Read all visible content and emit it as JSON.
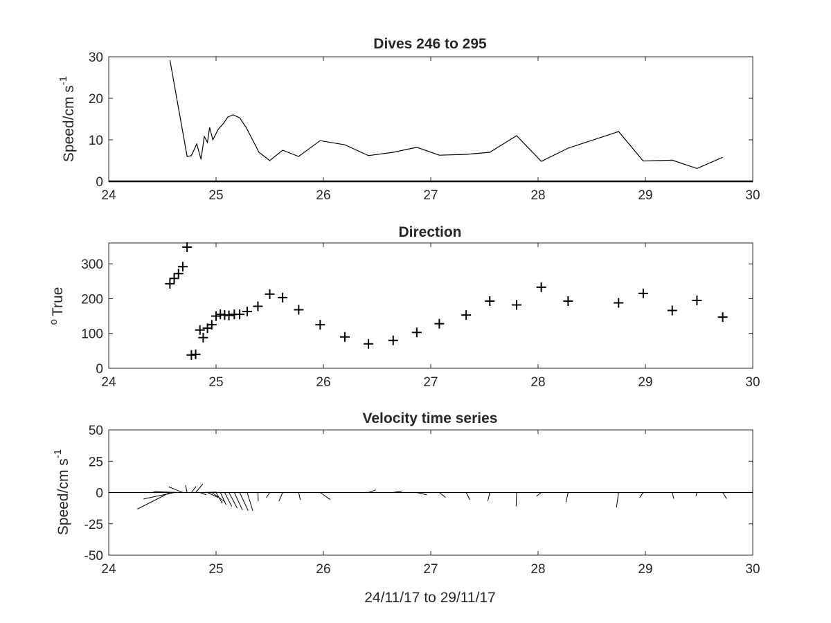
{
  "figure": {
    "xlabel": "24/11/17 to 29/11/17"
  },
  "chart_data": [
    {
      "type": "line",
      "title": "Dives 246 to 295",
      "ylabel": "Speed/cm s",
      "ylabel_exponent": "-1",
      "xlim": [
        24,
        30
      ],
      "ylim": [
        0,
        30
      ],
      "xticks": [
        24,
        25,
        26,
        27,
        28,
        29,
        30
      ],
      "yticks": [
        0,
        10,
        20,
        30
      ],
      "color": "#000000",
      "x": [
        24.57,
        24.73,
        24.77,
        24.82,
        24.86,
        24.89,
        24.92,
        24.94,
        24.97,
        25.02,
        25.07,
        25.11,
        25.16,
        25.22,
        25.28,
        25.4,
        25.5,
        25.62,
        25.77,
        25.97,
        26.2,
        26.42,
        26.65,
        26.87,
        27.08,
        27.33,
        27.55,
        27.8,
        28.03,
        28.28,
        28.75,
        28.98,
        29.25,
        29.48,
        29.72
      ],
      "y": [
        29.2,
        6.0,
        6.2,
        9.0,
        5.3,
        10.8,
        9.4,
        13.0,
        10.0,
        12.5,
        14.0,
        15.5,
        16.0,
        15.3,
        13.0,
        7.0,
        5.0,
        7.5,
        6.0,
        9.8,
        8.8,
        6.2,
        7.0,
        8.2,
        6.3,
        6.5,
        7.0,
        11.0,
        4.8,
        8.0,
        12.0,
        4.9,
        5.1,
        3.1,
        5.8
      ]
    },
    {
      "type": "scatter",
      "title": "Direction",
      "ylabel": "True",
      "ylabel_prefix": "o",
      "xlim": [
        24,
        30
      ],
      "ylim": [
        0,
        360
      ],
      "xticks": [
        24,
        25,
        26,
        27,
        28,
        29,
        30
      ],
      "yticks": [
        0,
        100,
        200,
        300
      ],
      "marker": "+",
      "color": "#000000",
      "x": [
        24.57,
        24.61,
        24.65,
        24.69,
        24.73,
        24.77,
        24.81,
        24.85,
        24.88,
        24.92,
        24.96,
        25.0,
        25.04,
        25.08,
        25.12,
        25.17,
        25.22,
        25.29,
        25.39,
        25.5,
        25.62,
        25.77,
        25.97,
        26.2,
        26.42,
        26.65,
        26.87,
        27.08,
        27.33,
        27.55,
        27.8,
        28.03,
        28.28,
        28.75,
        28.98,
        29.25,
        29.48,
        29.72
      ],
      "y": [
        243,
        258,
        272,
        292,
        348,
        38,
        40,
        110,
        88,
        115,
        125,
        150,
        155,
        153,
        152,
        155,
        155,
        163,
        178,
        213,
        203,
        168,
        125,
        90,
        70,
        80,
        103,
        128,
        153,
        193,
        182,
        233,
        193,
        188,
        215,
        166,
        195,
        147
      ]
    },
    {
      "type": "line",
      "title": "Velocity time series",
      "ylabel": "Speed/cm s",
      "ylabel_exponent": "-1",
      "xlim": [
        24,
        30
      ],
      "ylim": [
        -50,
        50
      ],
      "xticks": [
        24,
        25,
        26,
        27,
        28,
        29,
        30
      ],
      "yticks": [
        -50,
        -25,
        0,
        25,
        50
      ],
      "zero_line": true,
      "vector_style": "stick",
      "color": "#000000",
      "base_x": [
        24.57,
        24.61,
        24.65,
        24.69,
        24.73,
        24.77,
        24.81,
        24.85,
        24.88,
        24.92,
        24.96,
        25.0,
        25.04,
        25.08,
        25.12,
        25.17,
        25.22,
        25.29,
        25.39,
        25.5,
        25.62,
        25.77,
        25.97,
        26.2,
        26.42,
        26.65,
        26.87,
        27.08,
        27.33,
        27.55,
        27.8,
        28.03,
        28.28,
        28.75,
        28.98,
        29.25,
        29.48,
        29.72
      ],
      "speed": [
        29.2,
        25.0,
        20.0,
        12.0,
        6.0,
        6.2,
        9.0,
        5.3,
        10.8,
        9.4,
        13.0,
        10.0,
        11.0,
        12.5,
        14.0,
        15.5,
        16.0,
        15.3,
        7.0,
        5.0,
        7.5,
        6.0,
        9.8,
        8.8,
        6.2,
        7.0,
        8.2,
        6.3,
        6.5,
        7.0,
        11.0,
        4.8,
        8.0,
        12.0,
        4.9,
        5.1,
        3.1,
        5.8
      ]
    }
  ]
}
